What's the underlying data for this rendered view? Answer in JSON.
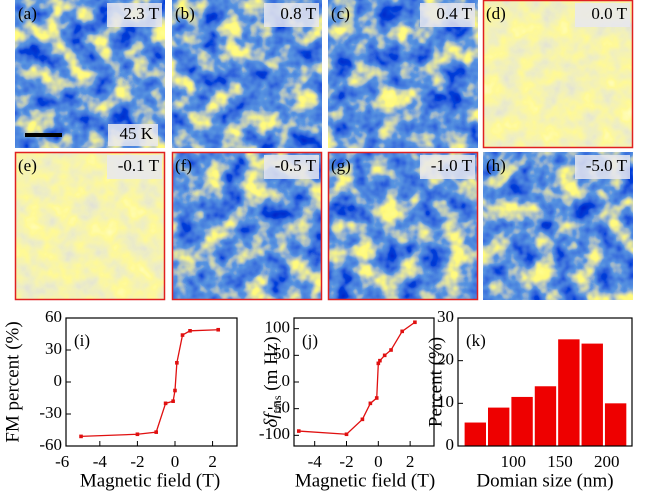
{
  "panels": [
    {
      "label": "(a)",
      "field": "2.3 T",
      "highlighted": false
    },
    {
      "label": "(b)",
      "field": "0.8 T",
      "highlighted": false
    },
    {
      "label": "(c)",
      "field": "0.4 T",
      "highlighted": false
    },
    {
      "label": "(d)",
      "field": "0.0 T",
      "highlighted": true
    },
    {
      "label": "(e)",
      "field": "-0.1 T",
      "highlighted": true
    },
    {
      "label": "(f)",
      "field": "-0.5 T",
      "highlighted": true
    },
    {
      "label": "(g)",
      "field": "-1.0 T",
      "highlighted": true
    },
    {
      "label": "(h)",
      "field": "-5.0 T",
      "highlighted": false
    }
  ],
  "temperature": "45 K",
  "chart_data": [
    {
      "type": "line",
      "label": "(i)",
      "xlabel": "Magnetic field (T)",
      "ylabel": "FM percent (%)",
      "color": "#e01010",
      "x": [
        -5,
        -2,
        -1,
        -0.5,
        -0.1,
        0,
        0.1,
        0.4,
        0.8,
        2.3
      ],
      "values": [
        -51,
        -49,
        -47,
        -20,
        -18,
        -8,
        18,
        44,
        48,
        49
      ],
      "xlim": [
        -5.8,
        3.3
      ],
      "xticks": [
        -6,
        -4,
        -2,
        0,
        2
      ],
      "ylim": [
        -60,
        60
      ],
      "yticks": [
        -60,
        -30,
        0,
        30,
        60
      ]
    },
    {
      "type": "line",
      "label": "(j)",
      "xlabel": "Magnetic field (T)",
      "ylabel_main": "δf",
      "ylabel_sub": "rms",
      "ylabel_unit": "(m Hz)",
      "color": "#e01010",
      "x": [
        -5,
        -2,
        -1,
        -0.5,
        -0.1,
        0,
        0.1,
        0.4,
        0.8,
        1.5,
        2.3
      ],
      "values": [
        -92,
        -98,
        -70,
        -40,
        -30,
        35,
        40,
        50,
        60,
        95,
        112
      ],
      "xlim": [
        -5.3,
        3.5
      ],
      "xticks": [
        -4,
        -2,
        0,
        2
      ],
      "ylim": [
        -120,
        120
      ],
      "yticks": [
        -100,
        -50,
        0,
        50,
        100
      ]
    },
    {
      "type": "histogram",
      "label": "(k)",
      "xlabel": "Domian size (nm)",
      "ylabel": "Percent (%)",
      "color": "#ee0000",
      "bins": [
        47,
        72,
        97,
        122,
        147,
        172,
        197,
        222
      ],
      "values": [
        5.5,
        9,
        11.5,
        14,
        25,
        24,
        10
      ],
      "xlim": [
        41,
        227
      ],
      "xticks": [
        100,
        150,
        200
      ],
      "ylim": [
        0,
        30
      ],
      "yticks": [
        0,
        10,
        20,
        30
      ]
    }
  ]
}
